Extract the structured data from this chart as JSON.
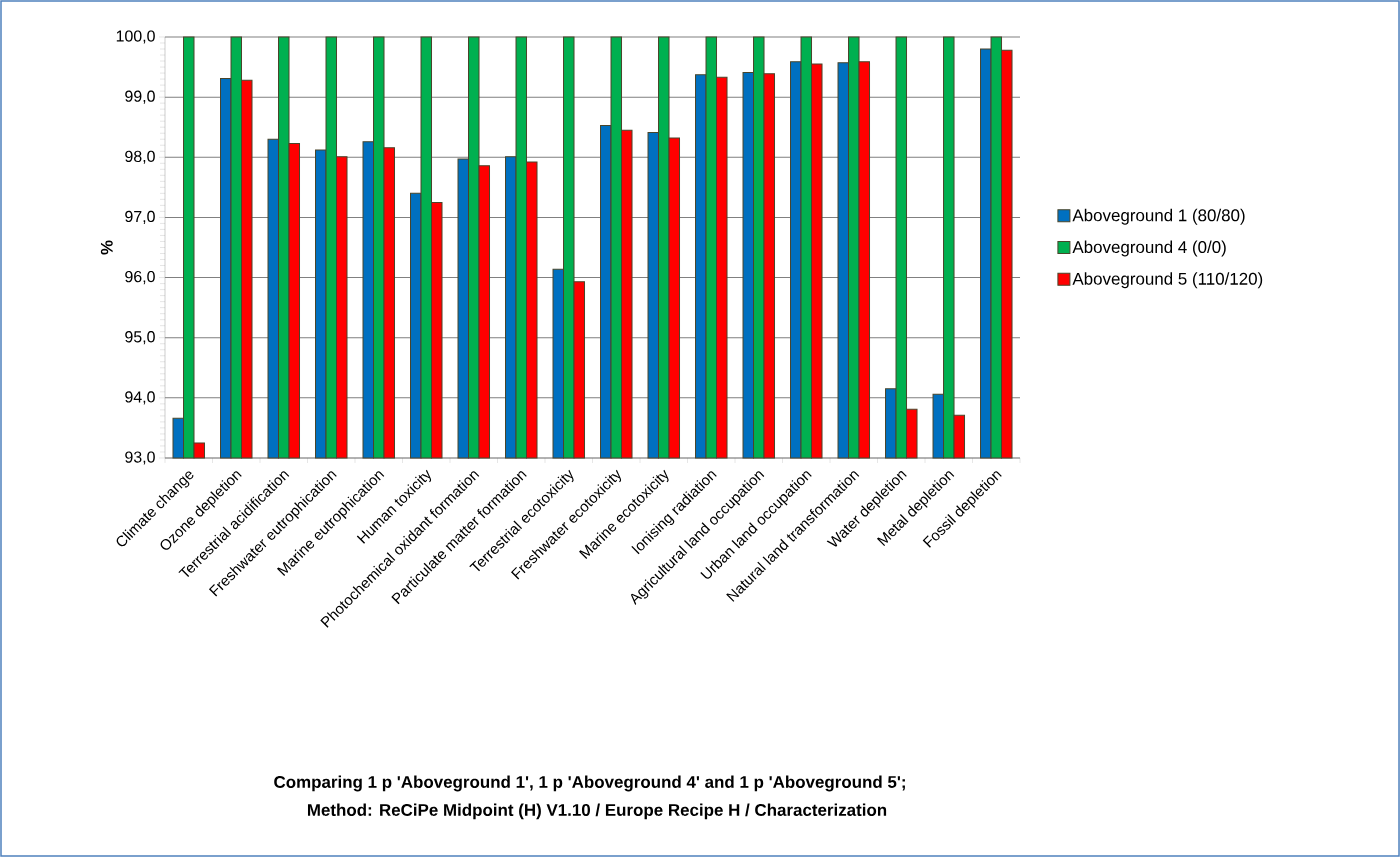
{
  "chart_data": {
    "type": "bar",
    "title": "Comparing 1 p 'Aboveground 1', 1 p 'Aboveground 4' and 1 p 'Aboveground 5';",
    "subtitle": "Method: ReCiPe Midpoint (H) V1.10 / Europe Recipe H / Characterization",
    "ylabel": "%",
    "categories": [
      "Climate change",
      "Ozone depletion",
      "Terrestrial acidification",
      "Freshwater eutrophication",
      "Marine eutrophication",
      "Human toxicity",
      "Photochemical oxidant formation",
      "Particulate matter formation",
      "Terrestrial ecotoxicity",
      "Freshwater ecotoxicity",
      "Marine ecotoxicity",
      "Ionising radiation",
      "Agricultural land occupation",
      "Urban land occupation",
      "Natural land transformation",
      "Water depletion",
      "Metal depletion",
      "Fossil depletion"
    ],
    "series": [
      {
        "name": "Aboveground 1 (80/80)",
        "color": "#0070c0",
        "values": [
          93.66,
          99.31,
          98.3,
          98.12,
          98.26,
          97.4,
          97.97,
          98.01,
          96.14,
          98.53,
          98.41,
          99.37,
          99.41,
          99.59,
          99.57,
          94.15,
          94.06,
          99.8
        ]
      },
      {
        "name": "Aboveground 4 (0/0)",
        "color": "#00b050",
        "values": [
          100,
          100,
          100,
          100,
          100,
          100,
          100,
          100,
          100,
          100,
          100,
          100,
          100,
          100,
          100,
          100,
          100,
          100
        ]
      },
      {
        "name": "Aboveground 5 (110/120)",
        "color": "#ff0000",
        "values": [
          93.25,
          99.28,
          98.23,
          98.01,
          98.16,
          97.25,
          97.86,
          97.92,
          95.93,
          98.45,
          98.32,
          99.33,
          99.39,
          99.55,
          99.59,
          93.81,
          93.71,
          99.78
        ]
      }
    ],
    "ylim": [
      93,
      100
    ],
    "yticks": [
      {
        "value": 93,
        "label": "93,0"
      },
      {
        "value": 94,
        "label": "94,0"
      },
      {
        "value": 95,
        "label": "95,0"
      },
      {
        "value": 96,
        "label": "96,0"
      },
      {
        "value": 97,
        "label": "97,0"
      },
      {
        "value": 98,
        "label": "98,0"
      },
      {
        "value": 99,
        "label": "99,0"
      },
      {
        "value": 100,
        "label": "100,0"
      }
    ],
    "grid": "y",
    "legend": "right"
  }
}
